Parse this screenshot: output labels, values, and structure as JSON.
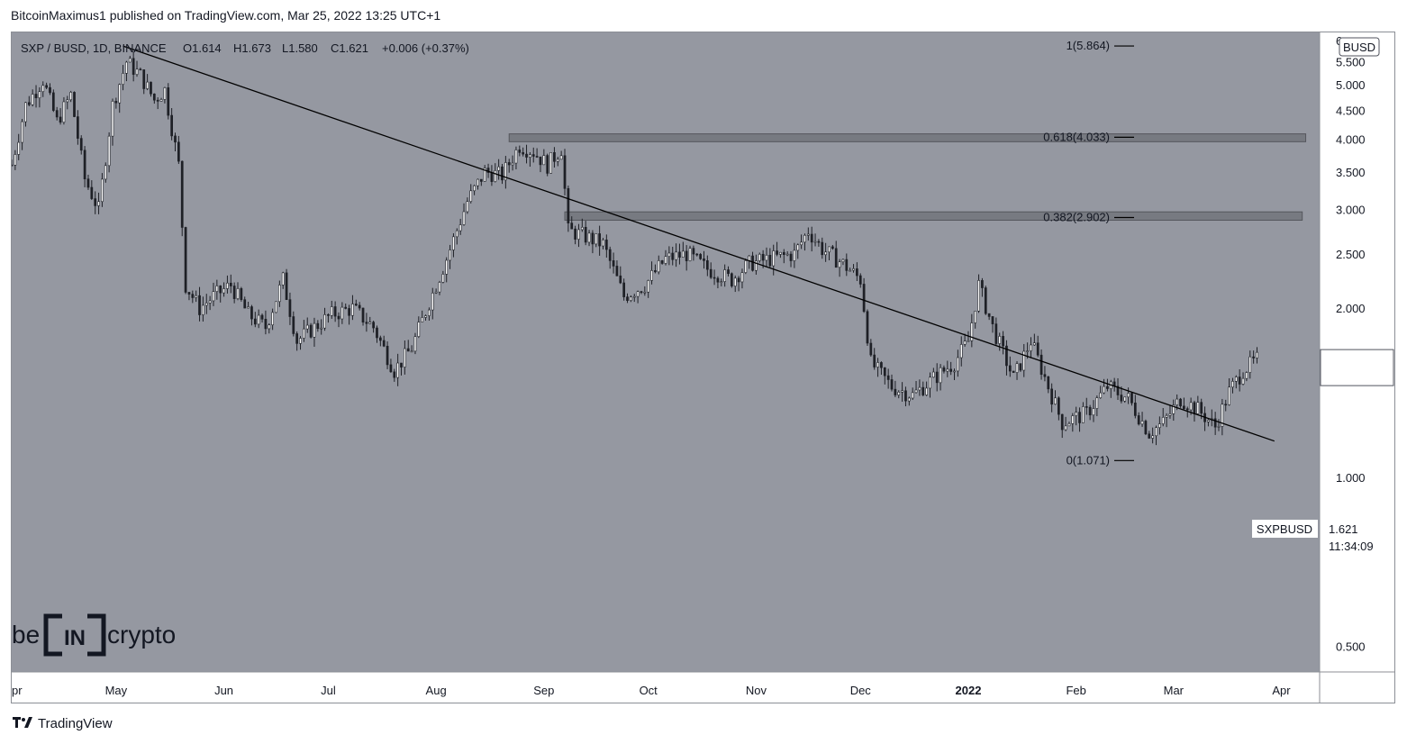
{
  "header": {
    "published_text": "BitcoinMaximus1 published on TradingView.com, Mar 25, 2022 13:25 UTC+1"
  },
  "footer": {
    "brand_text": "TradingView",
    "brand_icon": "tradingview-logo-icon"
  },
  "watermark": {
    "text_left": "be",
    "text_box": "IN",
    "text_right": "crypto"
  },
  "colors": {
    "background": "#9598a1",
    "candle": "#ffffff",
    "trendline": "#000000",
    "zone": "#6e7077"
  },
  "chart_data": {
    "type": "candlestick",
    "legend": {
      "symbol": "SXP / BUSD, 1D, BINANCE",
      "o_label": "O",
      "o_value": "1.614",
      "h_label": "H",
      "h_value": "1.673",
      "l_label": "L",
      "l_value": "1.580",
      "c_label": "C",
      "c_value": "1.621",
      "change": "+0.006 (+0.37%)"
    },
    "currency": "BUSD",
    "y_axis": {
      "scale": "log",
      "range": [
        0.45,
        6.2
      ],
      "ticks": [
        "6",
        "5.500",
        "5.000",
        "4.500",
        "4.000",
        "3.500",
        "3.000",
        "2.500",
        "2.000",
        "1.000",
        "0.500"
      ],
      "tick_values": [
        6,
        5.5,
        5,
        4.5,
        4,
        3.5,
        3,
        2.5,
        2,
        1,
        0.5
      ]
    },
    "x_axis": {
      "range": [
        "2021-04-01",
        "2022-04-12"
      ],
      "labels": [
        {
          "text": "pr",
          "date": "2021-04-01",
          "bold": false
        },
        {
          "text": "May",
          "date": "2021-05-01",
          "bold": false
        },
        {
          "text": "Jun",
          "date": "2021-06-01",
          "bold": false
        },
        {
          "text": "Jul",
          "date": "2021-07-01",
          "bold": false
        },
        {
          "text": "Aug",
          "date": "2021-08-01",
          "bold": false
        },
        {
          "text": "Sep",
          "date": "2021-09-01",
          "bold": false
        },
        {
          "text": "Oct",
          "date": "2021-10-01",
          "bold": false
        },
        {
          "text": "Nov",
          "date": "2021-11-01",
          "bold": false
        },
        {
          "text": "Dec",
          "date": "2021-12-01",
          "bold": false
        },
        {
          "text": "2022",
          "date": "2022-01-01",
          "bold": true
        },
        {
          "text": "Feb",
          "date": "2022-02-01",
          "bold": false
        },
        {
          "text": "Mar",
          "date": "2022-03-01",
          "bold": false
        },
        {
          "text": "Apr",
          "date": "2022-04-01",
          "bold": false
        }
      ]
    },
    "price_series": [
      {
        "date": "2021-04-01",
        "price": 3.6
      },
      {
        "date": "2021-04-05",
        "price": 4.6
      },
      {
        "date": "2021-04-10",
        "price": 5.1
      },
      {
        "date": "2021-04-14",
        "price": 4.3
      },
      {
        "date": "2021-04-18",
        "price": 4.8
      },
      {
        "date": "2021-04-22",
        "price": 3.4
      },
      {
        "date": "2021-04-26",
        "price": 3.0
      },
      {
        "date": "2021-04-30",
        "price": 4.6
      },
      {
        "date": "2021-05-04",
        "price": 5.5
      },
      {
        "date": "2021-05-08",
        "price": 5.2
      },
      {
        "date": "2021-05-12",
        "price": 4.7
      },
      {
        "date": "2021-05-15",
        "price": 4.9
      },
      {
        "date": "2021-05-19",
        "price": 3.6
      },
      {
        "date": "2021-05-21",
        "price": 2.2
      },
      {
        "date": "2021-05-25",
        "price": 2.0
      },
      {
        "date": "2021-05-29",
        "price": 2.1
      },
      {
        "date": "2021-06-03",
        "price": 2.2
      },
      {
        "date": "2021-06-08",
        "price": 1.95
      },
      {
        "date": "2021-06-13",
        "price": 1.85
      },
      {
        "date": "2021-06-18",
        "price": 2.25
      },
      {
        "date": "2021-06-22",
        "price": 1.75
      },
      {
        "date": "2021-06-27",
        "price": 1.85
      },
      {
        "date": "2021-07-02",
        "price": 1.95
      },
      {
        "date": "2021-07-08",
        "price": 2.0
      },
      {
        "date": "2021-07-14",
        "price": 1.85
      },
      {
        "date": "2021-07-20",
        "price": 1.55
      },
      {
        "date": "2021-07-25",
        "price": 1.7
      },
      {
        "date": "2021-07-30",
        "price": 2.05
      },
      {
        "date": "2021-08-04",
        "price": 2.45
      },
      {
        "date": "2021-08-10",
        "price": 3.1
      },
      {
        "date": "2021-08-15",
        "price": 3.5
      },
      {
        "date": "2021-08-20",
        "price": 3.45
      },
      {
        "date": "2021-08-25",
        "price": 3.9
      },
      {
        "date": "2021-08-29",
        "price": 3.8
      },
      {
        "date": "2021-09-02",
        "price": 3.6
      },
      {
        "date": "2021-09-06",
        "price": 3.85
      },
      {
        "date": "2021-09-08",
        "price": 2.75
      },
      {
        "date": "2021-09-12",
        "price": 2.7
      },
      {
        "date": "2021-09-18",
        "price": 2.6
      },
      {
        "date": "2021-09-24",
        "price": 2.1
      },
      {
        "date": "2021-09-30",
        "price": 2.2
      },
      {
        "date": "2021-10-06",
        "price": 2.45
      },
      {
        "date": "2021-10-12",
        "price": 2.5
      },
      {
        "date": "2021-10-18",
        "price": 2.35
      },
      {
        "date": "2021-10-25",
        "price": 2.25
      },
      {
        "date": "2021-10-30",
        "price": 2.4
      },
      {
        "date": "2021-11-05",
        "price": 2.45
      },
      {
        "date": "2021-11-12",
        "price": 2.5
      },
      {
        "date": "2021-11-16",
        "price": 2.75
      },
      {
        "date": "2021-11-20",
        "price": 2.55
      },
      {
        "date": "2021-11-26",
        "price": 2.4
      },
      {
        "date": "2021-12-01",
        "price": 2.25
      },
      {
        "date": "2021-12-04",
        "price": 1.6
      },
      {
        "date": "2021-12-10",
        "price": 1.45
      },
      {
        "date": "2021-12-16",
        "price": 1.4
      },
      {
        "date": "2021-12-22",
        "price": 1.5
      },
      {
        "date": "2021-12-28",
        "price": 1.6
      },
      {
        "date": "2022-01-01",
        "price": 1.75
      },
      {
        "date": "2022-01-04",
        "price": 2.2
      },
      {
        "date": "2022-01-08",
        "price": 1.85
      },
      {
        "date": "2022-01-14",
        "price": 1.5
      },
      {
        "date": "2022-01-19",
        "price": 1.75
      },
      {
        "date": "2022-01-24",
        "price": 1.45
      },
      {
        "date": "2022-01-28",
        "price": 1.25
      },
      {
        "date": "2022-02-04",
        "price": 1.3
      },
      {
        "date": "2022-02-10",
        "price": 1.45
      },
      {
        "date": "2022-02-16",
        "price": 1.38
      },
      {
        "date": "2022-02-22",
        "price": 1.2
      },
      {
        "date": "2022-02-26",
        "price": 1.25
      },
      {
        "date": "2022-03-03",
        "price": 1.38
      },
      {
        "date": "2022-03-08",
        "price": 1.32
      },
      {
        "date": "2022-03-13",
        "price": 1.23
      },
      {
        "date": "2022-03-17",
        "price": 1.42
      },
      {
        "date": "2022-03-21",
        "price": 1.55
      },
      {
        "date": "2022-03-25",
        "price": 1.621
      }
    ],
    "trendline": {
      "start": {
        "date": "2021-05-03",
        "price": 5.864
      },
      "end": {
        "date": "2022-03-30",
        "price": 1.16
      }
    },
    "zones": [
      {
        "from_date": "2021-08-22",
        "to_date": "2022-04-08",
        "low": 3.96,
        "high": 4.09
      },
      {
        "from_date": "2021-09-07",
        "to_date": "2022-04-07",
        "low": 2.87,
        "high": 2.97
      }
    ],
    "fib_levels": [
      {
        "label": "1(5.864)",
        "value": 5.864
      },
      {
        "label": "0.618(4.033)",
        "value": 4.033
      },
      {
        "label": "0.382(2.902)",
        "value": 2.902
      },
      {
        "label": "0(1.071)",
        "value": 1.071
      }
    ],
    "price_tag": {
      "symbol": "SXPBUSD",
      "price": "1.621",
      "countdown": "11:34:09",
      "value": 1.621
    }
  }
}
